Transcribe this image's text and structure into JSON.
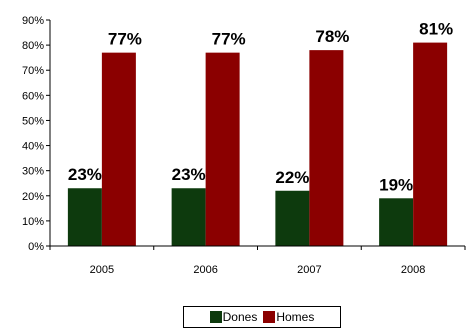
{
  "chart_data": {
    "type": "bar",
    "categories": [
      "2005",
      "2006",
      "2007",
      "2008"
    ],
    "series": [
      {
        "name": "Dones",
        "values": [
          23,
          23,
          22,
          19
        ],
        "labels": [
          "23%",
          "23%",
          "22%",
          "19%"
        ],
        "color": "#0d3a0d"
      },
      {
        "name": "Homes",
        "values": [
          77,
          77,
          78,
          81
        ],
        "labels": [
          "77%",
          "77%",
          "78%",
          "81%"
        ],
        "color": "#8b0000"
      }
    ],
    "yticks": [
      "0%",
      "10%",
      "20%",
      "30%",
      "40%",
      "50%",
      "60%",
      "70%",
      "80%",
      "90%"
    ],
    "ylim": [
      0,
      90
    ],
    "title": "",
    "xlabel": "",
    "ylabel": "",
    "grid": false,
    "legend_position": "bottom"
  }
}
